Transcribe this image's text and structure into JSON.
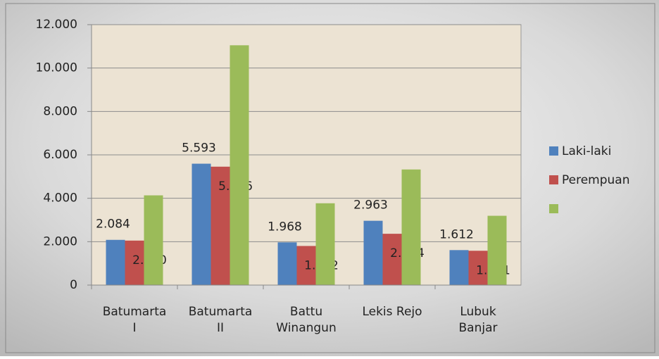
{
  "chart_data": {
    "type": "bar",
    "categories": [
      "Batumarta\nI",
      "Batumarta\nII",
      "Battu\nWinangun",
      "Lekis Rejo",
      "Lubuk\nBanjar"
    ],
    "series": [
      {
        "name": "Laki-laki",
        "color": "#4f81bd",
        "values": [
          2084,
          5593,
          1968,
          2963,
          1612
        ],
        "value_labels": [
          "2.084",
          "5.593",
          "1.968",
          "2.963",
          "1.612"
        ]
      },
      {
        "name": "Perempuan",
        "color": "#c0504d",
        "values": [
          2050,
          5456,
          1802,
          2364,
          1581
        ],
        "value_labels": [
          "2.050",
          "5.456",
          "1.802",
          "2.364",
          "1.581"
        ]
      },
      {
        "color": "#9bbb59",
        "values": [
          4134,
          11049,
          3770,
          5327,
          3193
        ]
      }
    ],
    "ylim": [
      0,
      12000
    ],
    "yticks": [
      0,
      {
        "value": 2000,
        "label": "2.000"
      },
      {
        "value": 4000,
        "label": "4.000"
      },
      {
        "value": 6000,
        "label": "6.000"
      },
      {
        "value": 8000,
        "label": "8.000"
      },
      {
        "value": 10000,
        "label": "10.000"
      },
      {
        "value": 12000,
        "label": "12.000"
      }
    ],
    "grid": true,
    "legend": "right"
  }
}
